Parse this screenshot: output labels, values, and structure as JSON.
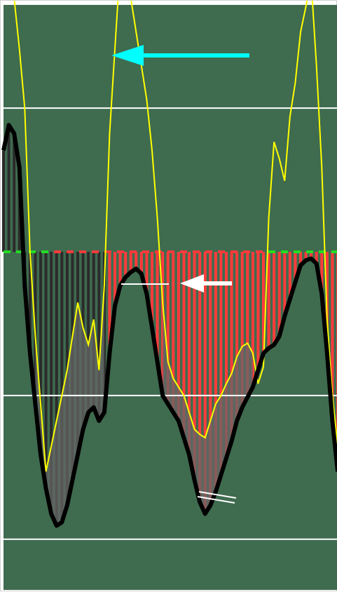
{
  "chart_data": {
    "type": "line",
    "grid": false,
    "legend": "none",
    "colors": {
      "background": "#3f6b4f",
      "bars_positive": "#ff3b3b",
      "bars_negative": "#2b2b2b",
      "zero_line_positive": "#22dd22",
      "zero_line_negative": "#ff3b3b",
      "main_line": "#000000",
      "signal_line": "#ffff00",
      "fill": "#666666",
      "level_lines": "#ffffff",
      "arrow_big": "#00ffff",
      "arrow_small": "#ffffff"
    },
    "levels": [
      0.85,
      -0.85,
      -1.7
    ],
    "zero_line": 0,
    "series": [
      {
        "values": [
          0.6,
          0.75,
          0.7,
          0.5,
          -0.2,
          -0.6,
          -0.9,
          -1.2,
          -1.4,
          -1.55,
          -1.62,
          -1.6,
          -1.5,
          -1.35,
          -1.2,
          -1.05,
          -0.95,
          -0.92,
          -1.0,
          -0.95,
          -0.6,
          -0.32,
          -0.2,
          -0.15,
          -0.12,
          -0.1,
          -0.13,
          -0.25,
          -0.45,
          -0.65,
          -0.85,
          -0.9,
          -0.95,
          -1.0,
          -1.1,
          -1.2,
          -1.35,
          -1.48,
          -1.55,
          -1.5,
          -1.42,
          -1.32,
          -1.22,
          -1.12,
          -1.0,
          -0.92,
          -0.86,
          -0.8,
          -0.7,
          -0.6,
          -0.57,
          -0.55,
          -0.5,
          -0.38,
          -0.28,
          -0.18,
          -0.08,
          -0.05,
          -0.04,
          -0.07,
          -0.25,
          -0.6,
          -1.0,
          -1.3
        ]
      },
      {
        "values": [
          2.0,
          1.8,
          1.5,
          1.2,
          0.85,
          0.0,
          -0.5,
          -0.9,
          -1.3,
          -1.15,
          -1.0,
          -0.85,
          -0.7,
          -0.5,
          -0.3,
          -0.45,
          -0.55,
          -0.4,
          -0.7,
          -0.2,
          0.7,
          1.2,
          1.7,
          1.65,
          1.5,
          1.3,
          1.1,
          0.9,
          0.6,
          0.2,
          -0.3,
          -0.65,
          -0.75,
          -0.8,
          -0.85,
          -0.95,
          -1.05,
          -1.08,
          -1.1,
          -1.0,
          -0.9,
          -0.85,
          -0.78,
          -0.72,
          -0.62,
          -0.56,
          -0.54,
          -0.6,
          -0.78,
          -0.68,
          0.2,
          0.65,
          0.55,
          0.42,
          0.8,
          1.0,
          1.3,
          1.45,
          1.6,
          1.1,
          0.5,
          -0.4,
          -0.85,
          -1.15
        ]
      }
    ],
    "annotations": [
      {
        "type": "arrow",
        "kind": "big",
        "pointing": "left"
      },
      {
        "type": "arrow",
        "kind": "small",
        "pointing": "left"
      }
    ]
  }
}
